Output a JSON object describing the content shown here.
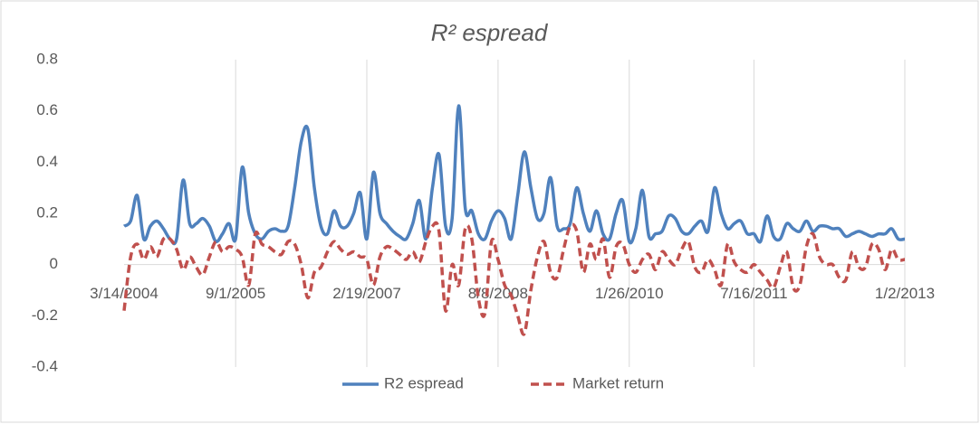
{
  "chart_data": {
    "type": "line",
    "title": "R² espread",
    "categories": [
      "3/14/2004",
      null,
      null,
      null,
      null,
      null,
      null,
      null,
      null,
      null,
      null,
      null,
      null,
      null,
      null,
      null,
      null,
      "9/1/2005",
      null,
      null,
      null,
      null,
      null,
      null,
      null,
      null,
      null,
      null,
      null,
      null,
      null,
      null,
      null,
      null,
      null,
      null,
      null,
      "2/19/2007",
      null,
      null,
      null,
      null,
      null,
      null,
      null,
      null,
      null,
      null,
      null,
      null,
      null,
      null,
      null,
      null,
      null,
      null,
      null,
      "8/8/2008",
      null,
      null,
      null,
      null,
      null,
      null,
      null,
      null,
      null,
      null,
      null,
      null,
      null,
      null,
      null,
      null,
      null,
      null,
      null,
      "1/26/2010",
      null,
      null,
      null,
      null,
      null,
      null,
      null,
      null,
      null,
      null,
      null,
      null,
      null,
      null,
      null,
      null,
      null,
      null,
      "7/16/2011",
      null,
      null,
      null,
      null,
      null,
      null,
      null,
      null,
      null,
      null,
      null,
      null,
      null,
      null,
      null,
      null,
      null,
      null,
      null,
      null,
      null,
      null,
      "1/2/2013"
    ],
    "series": [
      {
        "name": "R2 espread",
        "color": "#4f81bd",
        "dash": false,
        "values": [
          0.15,
          0.17,
          0.27,
          0.1,
          0.15,
          0.17,
          0.14,
          0.1,
          0.1,
          0.33,
          0.16,
          0.16,
          0.18,
          0.15,
          0.09,
          0.12,
          0.16,
          0.1,
          0.38,
          0.2,
          0.12,
          0.1,
          0.13,
          0.14,
          0.13,
          0.15,
          0.3,
          0.48,
          0.53,
          0.3,
          0.15,
          0.12,
          0.21,
          0.15,
          0.15,
          0.2,
          0.28,
          0.1,
          0.36,
          0.2,
          0.16,
          0.13,
          0.11,
          0.1,
          0.16,
          0.25,
          0.1,
          0.3,
          0.43,
          0.15,
          0.18,
          0.62,
          0.22,
          0.21,
          0.12,
          0.1,
          0.17,
          0.21,
          0.18,
          0.1,
          0.27,
          0.44,
          0.3,
          0.18,
          0.2,
          0.34,
          0.15,
          0.14,
          0.16,
          0.3,
          0.2,
          0.13,
          0.21,
          0.12,
          0.1,
          0.2,
          0.25,
          0.09,
          0.14,
          0.29,
          0.11,
          0.12,
          0.13,
          0.19,
          0.18,
          0.13,
          0.12,
          0.15,
          0.17,
          0.13,
          0.3,
          0.2,
          0.14,
          0.16,
          0.17,
          0.12,
          0.12,
          0.09,
          0.19,
          0.11,
          0.1,
          0.16,
          0.14,
          0.13,
          0.17,
          0.13,
          0.15,
          0.15,
          0.14,
          0.14,
          0.11,
          0.12,
          0.13,
          0.12,
          0.11,
          0.12,
          0.12,
          0.14,
          0.1,
          0.1
        ]
      },
      {
        "name": "Market return",
        "color": "#c0504d",
        "dash": true,
        "values": [
          -0.18,
          0.03,
          0.08,
          0.02,
          0.07,
          0.03,
          0.1,
          0.1,
          0.06,
          -0.02,
          0.03,
          -0.01,
          -0.04,
          0.03,
          0.09,
          0.05,
          0.07,
          0.06,
          0.03,
          -0.08,
          0.12,
          0.08,
          0.07,
          0.05,
          0.04,
          0.09,
          0.08,
          0.0,
          -0.13,
          -0.03,
          -0.01,
          0.05,
          0.09,
          0.06,
          0.04,
          0.05,
          0.03,
          0.02,
          -0.08,
          0.03,
          0.07,
          0.06,
          0.04,
          0.02,
          0.05,
          0.01,
          0.09,
          0.15,
          0.13,
          -0.18,
          0.0,
          -0.08,
          0.14,
          0.1,
          -0.13,
          -0.19,
          0.09,
          0.02,
          -0.08,
          -0.12,
          -0.2,
          -0.27,
          -0.1,
          0.03,
          0.09,
          -0.03,
          -0.05,
          0.06,
          0.15,
          0.13,
          -0.03,
          0.08,
          0.02,
          0.1,
          -0.05,
          0.07,
          0.08,
          0.0,
          -0.03,
          0.02,
          0.04,
          -0.02,
          0.05,
          0.02,
          0.0,
          0.06,
          0.09,
          -0.01,
          -0.03,
          0.02,
          -0.02,
          -0.08,
          0.08,
          0.01,
          -0.02,
          -0.03,
          0.0,
          -0.03,
          -0.06,
          -0.09,
          -0.01,
          0.05,
          -0.09,
          -0.08,
          0.07,
          0.12,
          0.03,
          0.0,
          0.0,
          -0.05,
          -0.06,
          0.05,
          -0.01,
          -0.01,
          0.08,
          0.06,
          -0.02,
          0.06,
          0.02,
          0.02
        ]
      }
    ],
    "ylim": [
      -0.4,
      0.8
    ],
    "yticks": [
      -0.4,
      -0.2,
      0,
      0.2,
      0.4,
      0.6,
      0.8
    ],
    "xgrid": true,
    "legend": "bottom"
  }
}
